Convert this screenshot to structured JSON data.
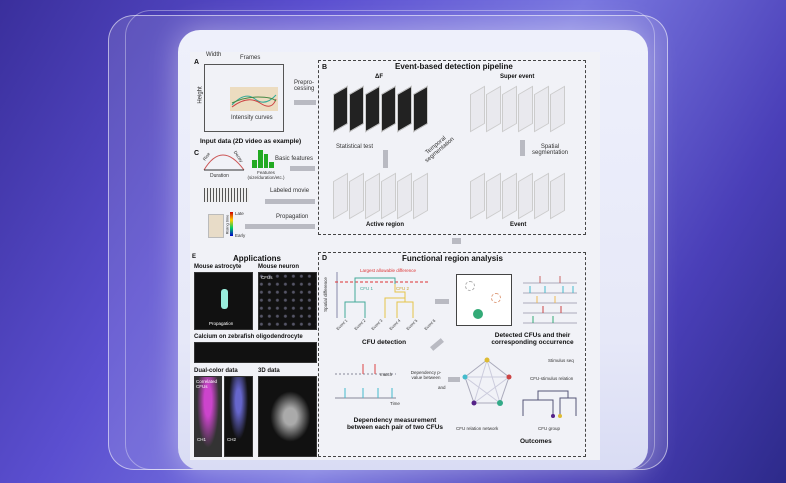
{
  "panelA": {
    "letter": "A",
    "frames": "Frames",
    "width": "Width",
    "height": "Height",
    "intensity": "Intensity curves",
    "caption": "Input data (2D video as example)",
    "preprocessing": "Prepro-\ncessing"
  },
  "panelB": {
    "letter": "B",
    "title": "Event-based detection pipeline",
    "deltaF": "ΔF",
    "super_event": "Super event",
    "statistical_test": "Statistical test",
    "temporal": "Temporal segmentation",
    "spatial": "Spatial segmentation",
    "active_region": "Active region",
    "event": "Event"
  },
  "panelC": {
    "letter": "C",
    "rise": "Rise",
    "decay": "Decay",
    "duration": "Duration",
    "features": "Features (size/duration/etc.)",
    "basic_features": "Basic features",
    "labeled_movie": "Labeled movie",
    "propagation": "Propagation",
    "late": "Late",
    "early": "Early",
    "rising_time": "Rising time"
  },
  "panelE": {
    "letter": "E",
    "title": "Applications",
    "mouse_astrocyte": "Mouse astrocyte",
    "mouse_neuron": "Mouse neuron",
    "cfus": "CFUs",
    "propagation": "Propagation",
    "zebrafish": "Calcium on zebrafish oligodendrocyte",
    "dual_color": "Dual-color data",
    "data_3d": "3D data",
    "correlated": "Correlated CFUs",
    "ch1": "CH1",
    "ch2": "CH2"
  },
  "panelD": {
    "letter": "D",
    "title": "Functional region analysis",
    "largest": "Largest allowable difference",
    "spatial_difference": "Spatial difference",
    "cfu1": "CFU 1",
    "cfu2": "CFU 2",
    "events": [
      "Event 1",
      "Event 2",
      "Event 3",
      "Event 4",
      "Event 5",
      "Event 6"
    ],
    "cfu_detection": "CFU detection",
    "detected": "Detected CFUs and their corresponding occurrence",
    "match": "match",
    "time": "Time",
    "dependency": "Dependency p-value between",
    "and": "and",
    "dependency_measurement": "Dependency measurement between each pair of two CFUs",
    "network": "CFU relation network",
    "stimulus_seq": "Stimulus seq",
    "cfu_stimulus": "CFU-stimulus relation",
    "cfu_group": "CFU group",
    "outcomes": "Outcomes"
  }
}
